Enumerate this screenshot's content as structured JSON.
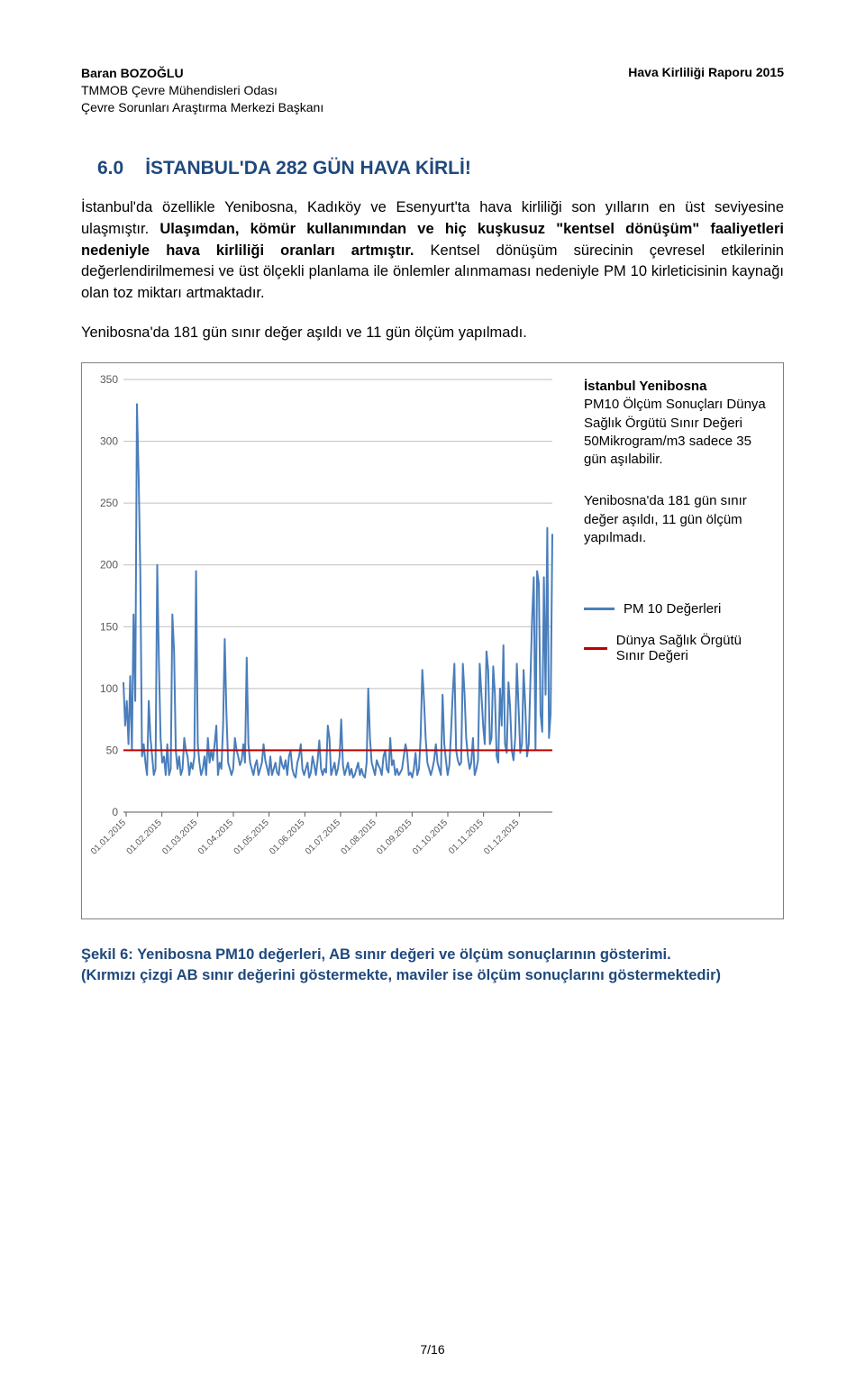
{
  "header": {
    "author_name": "Baran BOZOĞLU",
    "affiliation_line1": "TMMOB Çevre Mühendisleri Odası",
    "affiliation_line2": "Çevre Sorunları Araştırma Merkezi Başkanı",
    "report_title": "Hava Kirliliği Raporu 2015"
  },
  "section": {
    "number": "6.0",
    "title": "İSTANBUL'DA 282 GÜN HAVA KİRLİ!"
  },
  "paragraphs": {
    "p1_a": "İstanbul'da özellikle Yenibosna, Kadıköy ve Esenyurt'ta hava kirliliği son yılların en üst seviyesine ulaşmıştır. ",
    "p1_b": "Ulaşımdan, kömür kullanımından ve hiç kuşkusuz \"kentsel dönüşüm\" faaliyetleri nedeniyle hava kirliliği oranları artmıştır.",
    "p1_c": " Kentsel dönüşüm sürecinin çevresel etkilerinin değerlendirilmemesi ve üst ölçekli planlama ile önlemler alınmaması nedeniyle PM 10 kirleticisinin kaynağı olan toz miktarı artmaktadır.",
    "p2": "Yenibosna'da 181 gün sınır değer aşıldı ve 11 gün ölçüm yapılmadı."
  },
  "chart": {
    "type": "line",
    "y_axis": {
      "min": 0,
      "max": 350,
      "ticks": [
        0,
        50,
        100,
        150,
        200,
        250,
        300,
        350
      ],
      "label_fontsize": 12
    },
    "x_axis": {
      "labels": [
        "01.01.2015",
        "01.02.2015",
        "01.03.2015",
        "01.04.2015",
        "01.05.2015",
        "01.06.2015",
        "01.07.2015",
        "01.08.2015",
        "01.09.2015",
        "01.10.2015",
        "01.11.2015",
        "01.12.2015"
      ],
      "label_fontsize": 10
    },
    "threshold": {
      "value": 50,
      "color": "#c00000",
      "width": 2
    },
    "series": {
      "pm10": {
        "color": "#4a7ebb",
        "width": 2,
        "values": [
          105,
          70,
          90,
          55,
          110,
          50,
          160,
          90,
          330,
          270,
          195,
          45,
          55,
          40,
          30,
          90,
          60,
          45,
          30,
          35,
          200,
          120,
          60,
          40,
          45,
          30,
          55,
          30,
          35,
          160,
          130,
          50,
          35,
          45,
          30,
          35,
          60,
          50,
          45,
          30,
          40,
          35,
          45,
          195,
          55,
          40,
          30,
          35,
          45,
          30,
          60,
          40,
          50,
          42,
          55,
          70,
          30,
          40,
          35,
          70,
          140,
          80,
          40,
          35,
          30,
          35,
          60,
          50,
          45,
          38,
          42,
          55,
          40,
          125,
          55,
          40,
          35,
          30,
          38,
          42,
          30,
          35,
          40,
          55,
          42,
          36,
          30,
          45,
          30,
          35,
          40,
          32,
          30,
          45,
          38,
          35,
          42,
          30,
          45,
          50,
          35,
          30,
          28,
          40,
          45,
          55,
          35,
          30,
          35,
          40,
          28,
          32,
          45,
          38,
          30,
          42,
          58,
          35,
          30,
          35,
          32,
          70,
          60,
          30,
          35,
          40,
          30,
          35,
          45,
          75,
          38,
          30,
          35,
          40,
          30,
          35,
          28,
          30,
          35,
          40,
          30,
          35,
          30,
          28,
          40,
          100,
          60,
          40,
          35,
          30,
          42,
          38,
          35,
          30,
          45,
          50,
          35,
          32,
          60,
          38,
          42,
          30,
          35,
          30,
          32,
          35,
          45,
          55,
          48,
          30,
          32,
          28,
          35,
          48,
          30,
          35,
          60,
          115,
          90,
          60,
          40,
          35,
          30,
          35,
          42,
          55,
          40,
          35,
          30,
          95,
          55,
          42,
          30,
          38,
          65,
          95,
          120,
          50,
          42,
          38,
          40,
          120,
          95,
          60,
          45,
          35,
          40,
          60,
          30,
          35,
          42,
          120,
          95,
          70,
          55,
          130,
          115,
          55,
          60,
          118,
          95,
          45,
          40,
          100,
          70,
          135,
          55,
          48,
          105,
          85,
          50,
          42,
          60,
          120,
          85,
          48,
          55,
          115,
          85,
          45,
          55,
          105,
          155,
          190,
          50,
          195,
          185,
          80,
          65,
          190,
          95,
          230,
          60,
          80,
          225
        ]
      }
    },
    "colors": {
      "grid": "#bfbfbf",
      "axis_text": "#595959",
      "background": "#ffffff"
    },
    "sidebar": {
      "title_line1": "İstanbul Yenibosna",
      "desc_a": "PM10 Ölçüm Sonuçları Dünya Sağlık Örgütü Sınır Değeri 50Mikrogram/m3 sadece 35 gün aşılabilir.",
      "desc_b": "Yenibosna'da 181 gün sınır değer aşıldı, 11 gün ölçüm yapılmadı."
    },
    "legend": {
      "pm10_label": "PM 10 Değerleri",
      "limit_label": "Dünya Sağlık Örgütü Sınır Değeri"
    }
  },
  "caption": {
    "line1": "Şekil 6: Yenibosna PM10 değerleri, AB sınır değeri ve ölçüm sonuçlarının gösterimi.",
    "line2": "(Kırmızı çizgi AB sınır değerini göstermekte, maviler ise ölçüm sonuçlarını göstermektedir)"
  },
  "footer": {
    "page_indicator": "7/16"
  }
}
